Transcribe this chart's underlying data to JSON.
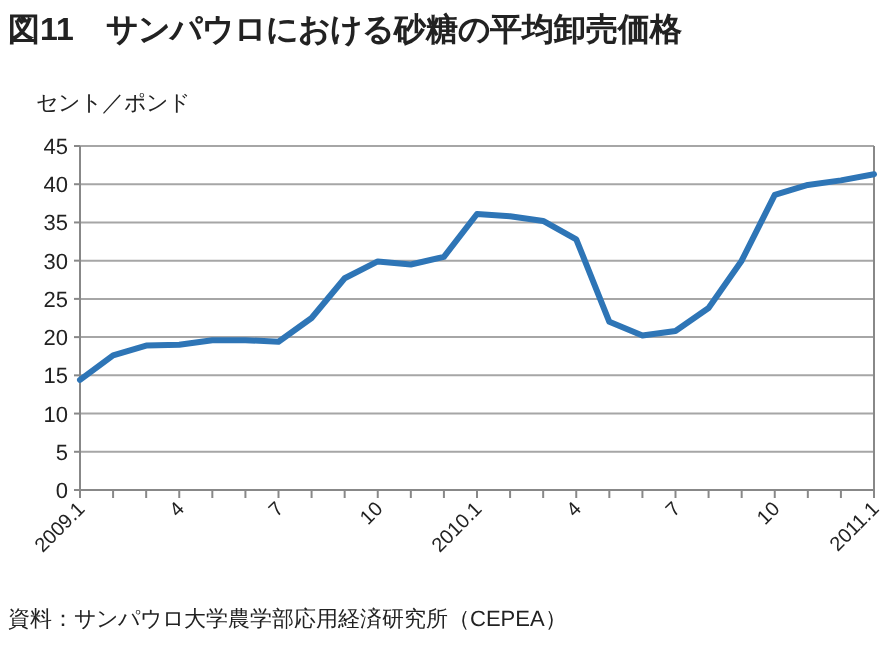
{
  "chart_data": {
    "type": "line",
    "title": "図11　サンパウロにおける砂糖の平均卸売価格",
    "ylabel": "セント／ポンド",
    "categories": [
      "2009.1",
      null,
      null,
      "4",
      null,
      null,
      "7",
      null,
      null,
      "10",
      null,
      null,
      "2010.1",
      null,
      null,
      "4",
      null,
      null,
      "7",
      null,
      null,
      "10",
      null,
      null,
      "2011.1"
    ],
    "series": [
      {
        "color": "#2e75b6",
        "values": [
          14.4,
          17.6,
          18.9,
          19.0,
          19.6,
          19.6,
          19.4,
          22.5,
          27.7,
          29.9,
          29.5,
          30.5,
          36.1,
          35.8,
          35.2,
          32.8,
          22.0,
          20.2,
          20.8,
          23.8,
          30.0,
          38.6,
          39.9,
          40.5,
          41.3
        ]
      }
    ],
    "ylim": [
      0,
      45
    ],
    "yticks": [
      0,
      5,
      10,
      15,
      20,
      25,
      30,
      35,
      40,
      45
    ],
    "grid": "y",
    "line_style": "solid",
    "annotations": [
      "資料：サンパウロ大学農学部応用経済研究所（CEPEA）"
    ]
  }
}
